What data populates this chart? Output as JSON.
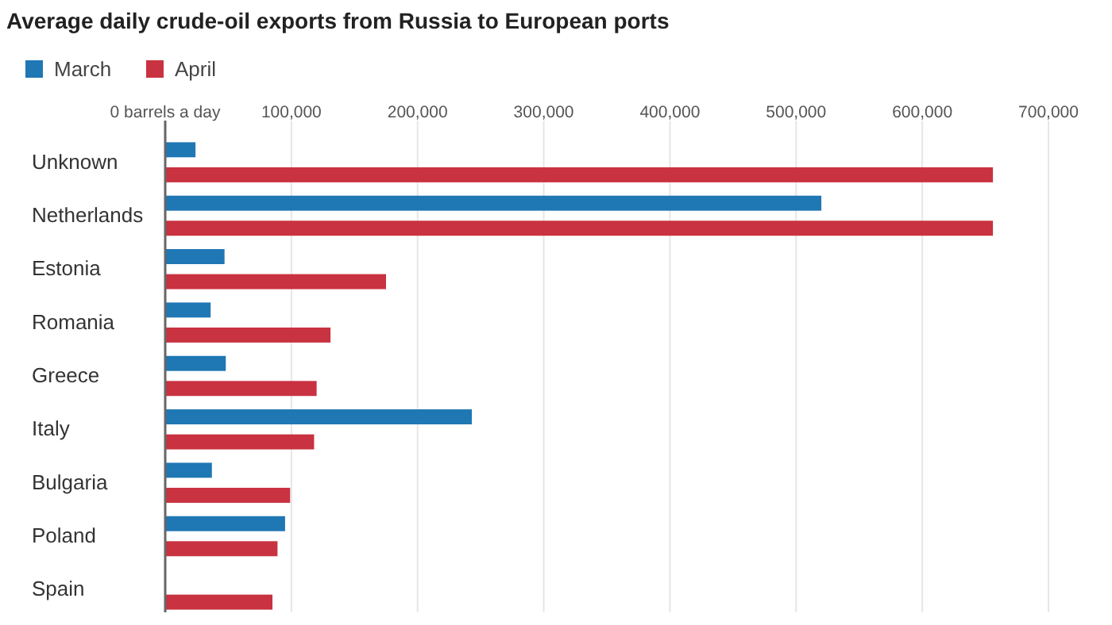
{
  "chart_data": {
    "type": "bar",
    "orientation": "horizontal",
    "title": "Average daily crude-oil exports from Russia to European ports",
    "categories": [
      "Unknown",
      "Netherlands",
      "Estonia",
      "Romania",
      "Greece",
      "Italy",
      "Bulgaria",
      "Poland",
      "Spain"
    ],
    "series": [
      {
        "name": "March",
        "color": "#1f77b4",
        "values": [
          24000,
          520000,
          47000,
          36000,
          48000,
          243000,
          37000,
          95000,
          0
        ]
      },
      {
        "name": "April",
        "color": "#c93240",
        "values": [
          656000,
          656000,
          175000,
          131000,
          120000,
          118000,
          99000,
          89000,
          85000
        ]
      }
    ],
    "xlim": [
      0,
      700000
    ],
    "xticks": [
      {
        "value": 0,
        "label": "0 barrels a day"
      },
      {
        "value": 100000,
        "label": "100,000"
      },
      {
        "value": 200000,
        "label": "200,000"
      },
      {
        "value": 300000,
        "label": "300,000"
      },
      {
        "value": 400000,
        "label": "400,000"
      },
      {
        "value": 500000,
        "label": "500,000"
      },
      {
        "value": 600000,
        "label": "600,000"
      },
      {
        "value": 700000,
        "label": "700,000"
      }
    ],
    "grid": "x",
    "legend": "top left"
  }
}
